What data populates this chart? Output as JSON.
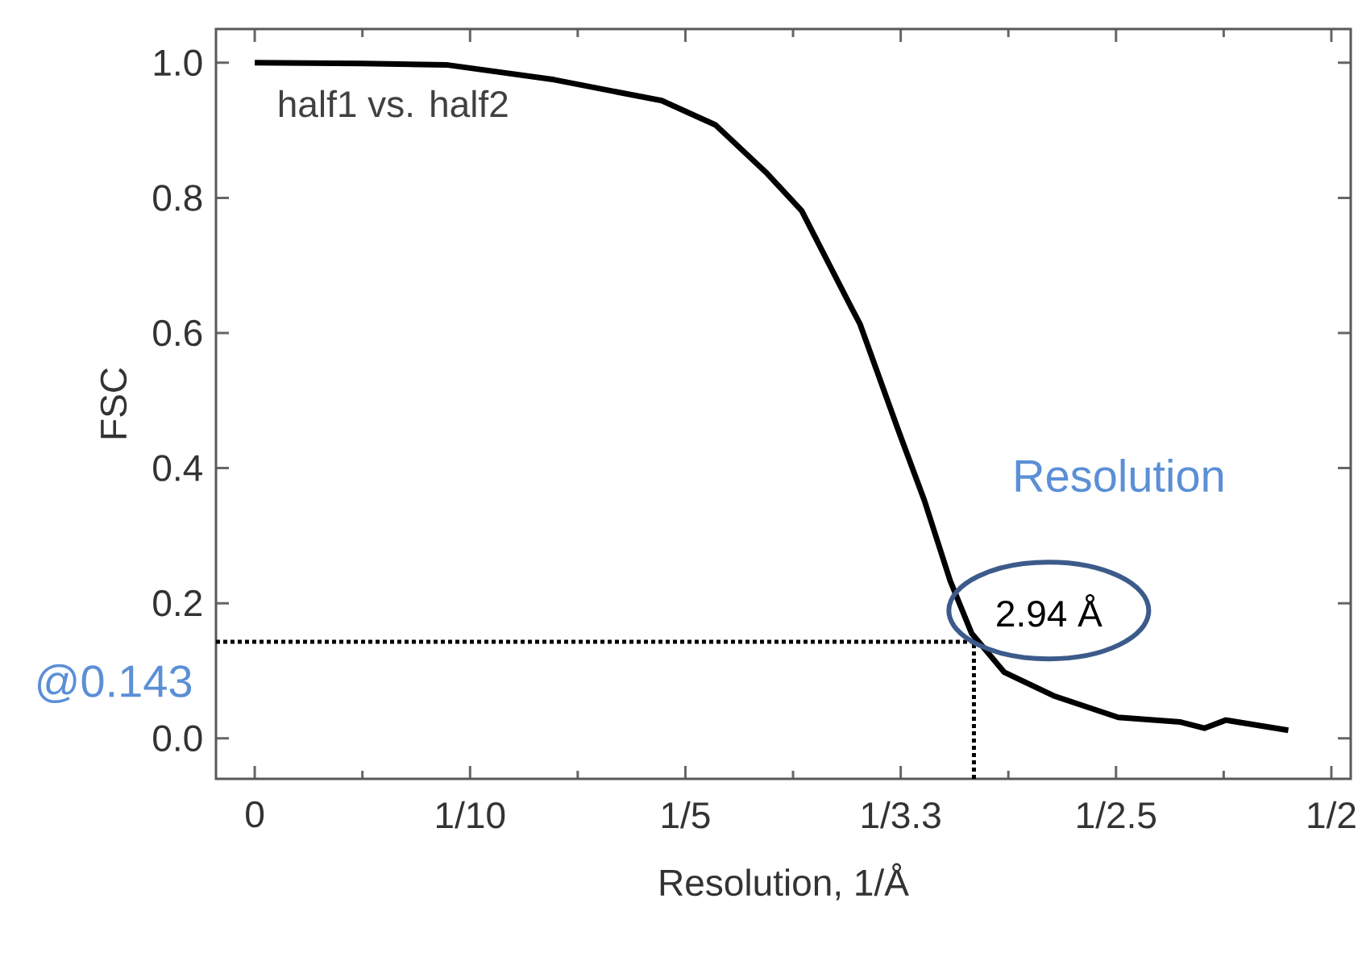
{
  "chart_data": {
    "type": "line",
    "xlabel": "Resolution, 1/Å",
    "ylabel": "FSC",
    "series": [
      {
        "color": "#000000",
        "x": [
          0,
          0.05,
          0.089,
          0.139,
          0.189,
          0.214,
          0.238,
          0.254,
          0.277,
          0.281,
          0.299,
          0.311,
          0.323,
          0.333,
          0.348,
          0.371,
          0.401,
          0.43,
          0.441,
          0.451,
          0.48
        ],
        "values": [
          1.0,
          0.999,
          0.997,
          0.975,
          0.944,
          0.908,
          0.836,
          0.781,
          0.638,
          0.614,
          0.455,
          0.352,
          0.233,
          0.155,
          0.098,
          0.063,
          0.031,
          0.024,
          0.015,
          0.027,
          0.012
        ]
      }
    ],
    "xlim": [
      -0.018,
      0.509
    ],
    "ylim": [
      -0.06,
      1.05
    ],
    "xticks": [
      0,
      {
        "value": 0.05,
        "label": null
      },
      {
        "value": 0.1,
        "label": "1/10"
      },
      {
        "value": 0.15,
        "label": null
      },
      {
        "value": 0.2,
        "label": "1/5"
      },
      {
        "value": 0.25,
        "label": null
      },
      {
        "value": 0.3,
        "label": "1/3.3"
      },
      {
        "value": 0.35,
        "label": null
      },
      {
        "value": 0.4,
        "label": "1/2.5"
      },
      {
        "value": 0.45,
        "label": null
      },
      {
        "value": 0.5,
        "label": "1/2"
      }
    ],
    "yticks": [
      {
        "value": 0,
        "label": "0.0"
      },
      {
        "value": 0.2,
        "label": "0.2"
      },
      {
        "value": 0.4,
        "label": "0.4"
      },
      {
        "value": 0.6,
        "label": "0.6"
      },
      {
        "value": 0.8,
        "label": "0.8"
      },
      {
        "value": 1,
        "label": "1.0"
      }
    ],
    "ref_lines": [
      {
        "axis": "y",
        "value": 0.143,
        "label": "@0.143",
        "line_style": "dotted"
      },
      {
        "axis": "x",
        "value": 0.334,
        "line_style": "dotted"
      }
    ],
    "annotations": [
      "half1 vs. half2",
      "Resolution",
      {
        "text": "2.94 Å",
        "x": 0.334,
        "y": 0.143
      }
    ],
    "marker": "none",
    "line_style": "solid"
  }
}
